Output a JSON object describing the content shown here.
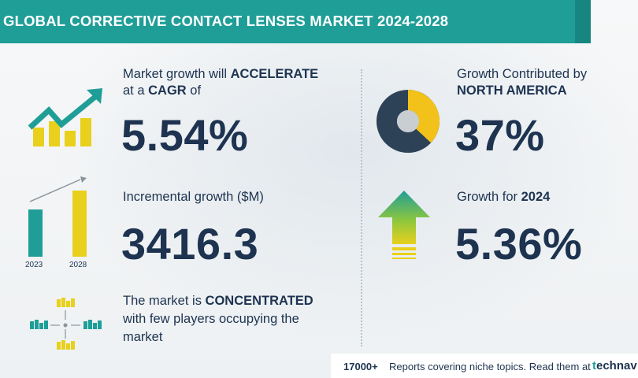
{
  "header": {
    "title": "GLOBAL CORRECTIVE CONTACT LENSES MARKET 2024-2028"
  },
  "cagr": {
    "line1_prefix": "Market growth will ",
    "line1_strong": "ACCELERATE",
    "line2_prefix": "at a ",
    "line2_strong": "CAGR",
    "line2_suffix": " of",
    "value": "5.54%"
  },
  "incremental": {
    "label": "Incremental growth ($M)",
    "value": "3416.3",
    "years": [
      "2023",
      "2028"
    ]
  },
  "concentration": {
    "line1_prefix": "The market is ",
    "line1_strong": "CONCENTRATED",
    "line2": "with few players occupying the",
    "line3": "market"
  },
  "region": {
    "line1": "Growth Contributed by",
    "line2_strong": "NORTH AMERICA",
    "value": "37%",
    "share": 0.37
  },
  "year_growth": {
    "label_prefix": "Growth for ",
    "year": "2024",
    "value": "5.36%"
  },
  "footer": {
    "count": "17000+",
    "text": "Reports covering niche topics. Read them at",
    "brand_mark": "t",
    "brand": "echnav"
  },
  "colors": {
    "teal": "#1f9e97",
    "navy": "#1d3350",
    "yellow": "#e8d01c",
    "donut_dark": "#2e4257",
    "donut_yellow": "#f2c21b"
  }
}
